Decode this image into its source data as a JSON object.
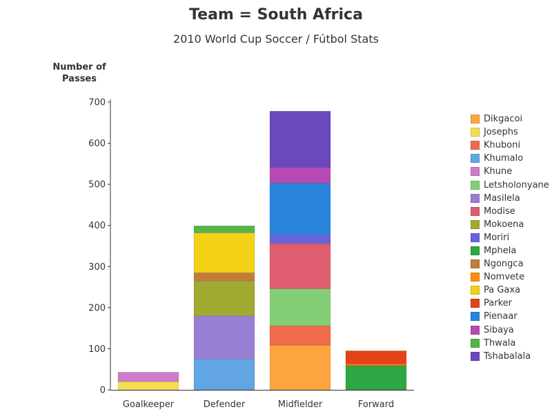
{
  "chart_data": {
    "type": "bar",
    "stacked": true,
    "title": "Team = South Africa",
    "subtitle": "2010 World Cup Soccer / Fútbol Stats",
    "ylabel": "Number of Passes",
    "xlabel": "",
    "ylim": [
      0,
      700
    ],
    "yticks": [
      0,
      100,
      200,
      300,
      400,
      500,
      600,
      700
    ],
    "grid": false,
    "legend_position": "right",
    "categories": [
      "Goalkeeper",
      "Defender",
      "Midfielder",
      "Forward"
    ],
    "series": [
      {
        "name": "Dikgacoi",
        "color": "#FFA53F",
        "values": [
          0,
          0,
          108,
          0
        ]
      },
      {
        "name": "Josephs",
        "color": "#F5DD52",
        "values": [
          20,
          0,
          0,
          0
        ]
      },
      {
        "name": "Khuboni",
        "color": "#EF6B4B",
        "values": [
          0,
          0,
          48,
          0
        ]
      },
      {
        "name": "Khumalo",
        "color": "#62A5E3",
        "values": [
          0,
          75,
          0,
          0
        ]
      },
      {
        "name": "Khune",
        "color": "#CE7CCA",
        "values": [
          23,
          0,
          0,
          0
        ]
      },
      {
        "name": "Letsholonyane",
        "color": "#85CE78",
        "values": [
          0,
          0,
          90,
          0
        ]
      },
      {
        "name": "Masilela",
        "color": "#977FD3",
        "values": [
          0,
          105,
          0,
          0
        ]
      },
      {
        "name": "Modise",
        "color": "#DE5D6F",
        "values": [
          0,
          0,
          110,
          0
        ]
      },
      {
        "name": "Mokoena",
        "color": "#A1AA30",
        "values": [
          0,
          85,
          0,
          0
        ]
      },
      {
        "name": "Moriri",
        "color": "#6665DD",
        "values": [
          0,
          0,
          22,
          0
        ]
      },
      {
        "name": "Mphela",
        "color": "#2EA644",
        "values": [
          0,
          0,
          0,
          58
        ]
      },
      {
        "name": "Ngongca",
        "color": "#C07D3A",
        "values": [
          0,
          20,
          0,
          2
        ]
      },
      {
        "name": "Nomvete",
        "color": "#FF8C0F",
        "values": [
          0,
          0,
          0,
          3
        ]
      },
      {
        "name": "Pa Gaxa",
        "color": "#F3D117",
        "values": [
          0,
          97,
          0,
          0
        ]
      },
      {
        "name": "Parker",
        "color": "#E44219",
        "values": [
          0,
          0,
          0,
          32
        ]
      },
      {
        "name": "Pienaar",
        "color": "#2884DD",
        "values": [
          0,
          0,
          125,
          0
        ]
      },
      {
        "name": "Sibaya",
        "color": "#B74AB4",
        "values": [
          0,
          0,
          38,
          0
        ]
      },
      {
        "name": "Thwala",
        "color": "#55B449",
        "values": [
          0,
          17,
          0,
          0
        ]
      },
      {
        "name": "Tshabalala",
        "color": "#6B48BE",
        "values": [
          0,
          0,
          137,
          0
        ]
      }
    ]
  }
}
